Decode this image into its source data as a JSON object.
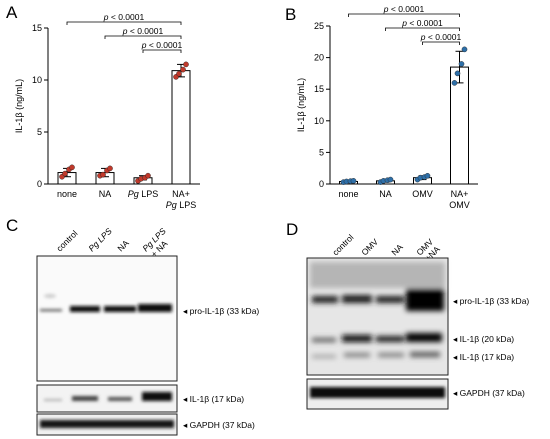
{
  "panels": {
    "A": "A",
    "B": "B",
    "C": "C",
    "D": "D"
  },
  "chart_data": [
    {
      "type": "bar",
      "panel": "A",
      "ylabel": "IL-1β (ng/mL)",
      "ylim": [
        0,
        15
      ],
      "yticks": [
        "0",
        "5",
        "10",
        "15"
      ],
      "categories": [
        "none",
        "NA",
        "Pg LPS",
        "NA+ Pg LPS"
      ],
      "category_lines": [
        [
          "none"
        ],
        [
          "NA"
        ],
        [
          "Pg LPS"
        ],
        [
          "NA+",
          "Pg LPS"
        ]
      ],
      "values": [
        1.1,
        1.1,
        0.6,
        10.9
      ],
      "errors": [
        0.4,
        0.4,
        0.2,
        0.6
      ],
      "points": [
        [
          0.7,
          1.0,
          1.4,
          1.6
        ],
        [
          0.8,
          0.9,
          1.3,
          1.5
        ],
        [
          0.3,
          0.5,
          0.6,
          0.8
        ],
        [
          10.3,
          10.6,
          11.0,
          11.5
        ]
      ],
      "point_color": "#c0392b",
      "significance": [
        {
          "from": 0,
          "to": 3,
          "label": "p < 0.0001"
        },
        {
          "from": 1,
          "to": 3,
          "label": "p < 0.0001"
        },
        {
          "from": 2,
          "to": 3,
          "label": "p < 0.0001"
        }
      ]
    },
    {
      "type": "bar",
      "panel": "B",
      "ylabel": "IL-1β (ng/mL)",
      "ylim": [
        0,
        25
      ],
      "yticks": [
        "0",
        "5",
        "10",
        "15",
        "20",
        "25"
      ],
      "categories": [
        "none",
        "NA",
        "OMV",
        "NA+ OMV"
      ],
      "category_lines": [
        [
          "none"
        ],
        [
          "NA"
        ],
        [
          "OMV"
        ],
        [
          "NA+",
          "OMV"
        ]
      ],
      "values": [
        0.4,
        0.5,
        1.0,
        18.5
      ],
      "errors": [
        0.1,
        0.2,
        0.3,
        2.5
      ],
      "points": [
        [
          0.3,
          0.4,
          0.45,
          0.5
        ],
        [
          0.3,
          0.5,
          0.6,
          0.7
        ],
        [
          0.7,
          1.0,
          1.1,
          1.3
        ],
        [
          16.0,
          17.5,
          19.0,
          21.3
        ]
      ],
      "point_color": "#2e6fa8",
      "significance": [
        {
          "from": 0,
          "to": 3,
          "label": "p < 0.0001"
        },
        {
          "from": 1,
          "to": 3,
          "label": "p < 0.0001"
        },
        {
          "from": 2,
          "to": 3,
          "label": "p < 0.0001"
        }
      ]
    }
  ],
  "blots": {
    "C": {
      "lanes": [
        [
          "control"
        ],
        [
          "Pg LPS"
        ],
        [
          "NA"
        ],
        [
          "Pg LPS",
          "+ NA"
        ]
      ],
      "labels": [
        "pro-IL-1β (33 kDa)",
        "IL-1β (17 kDa)",
        "GAPDH (37 kDa)"
      ]
    },
    "D": {
      "lanes": [
        [
          "control"
        ],
        [
          "OMV"
        ],
        [
          "NA"
        ],
        [
          "OMV",
          "+NA"
        ]
      ],
      "labels": [
        "pro-IL-1β (33 kDa)",
        "IL-1β (20 kDa)",
        "IL-1β (17 kDa)",
        "GAPDH (37 kDa)"
      ]
    }
  }
}
